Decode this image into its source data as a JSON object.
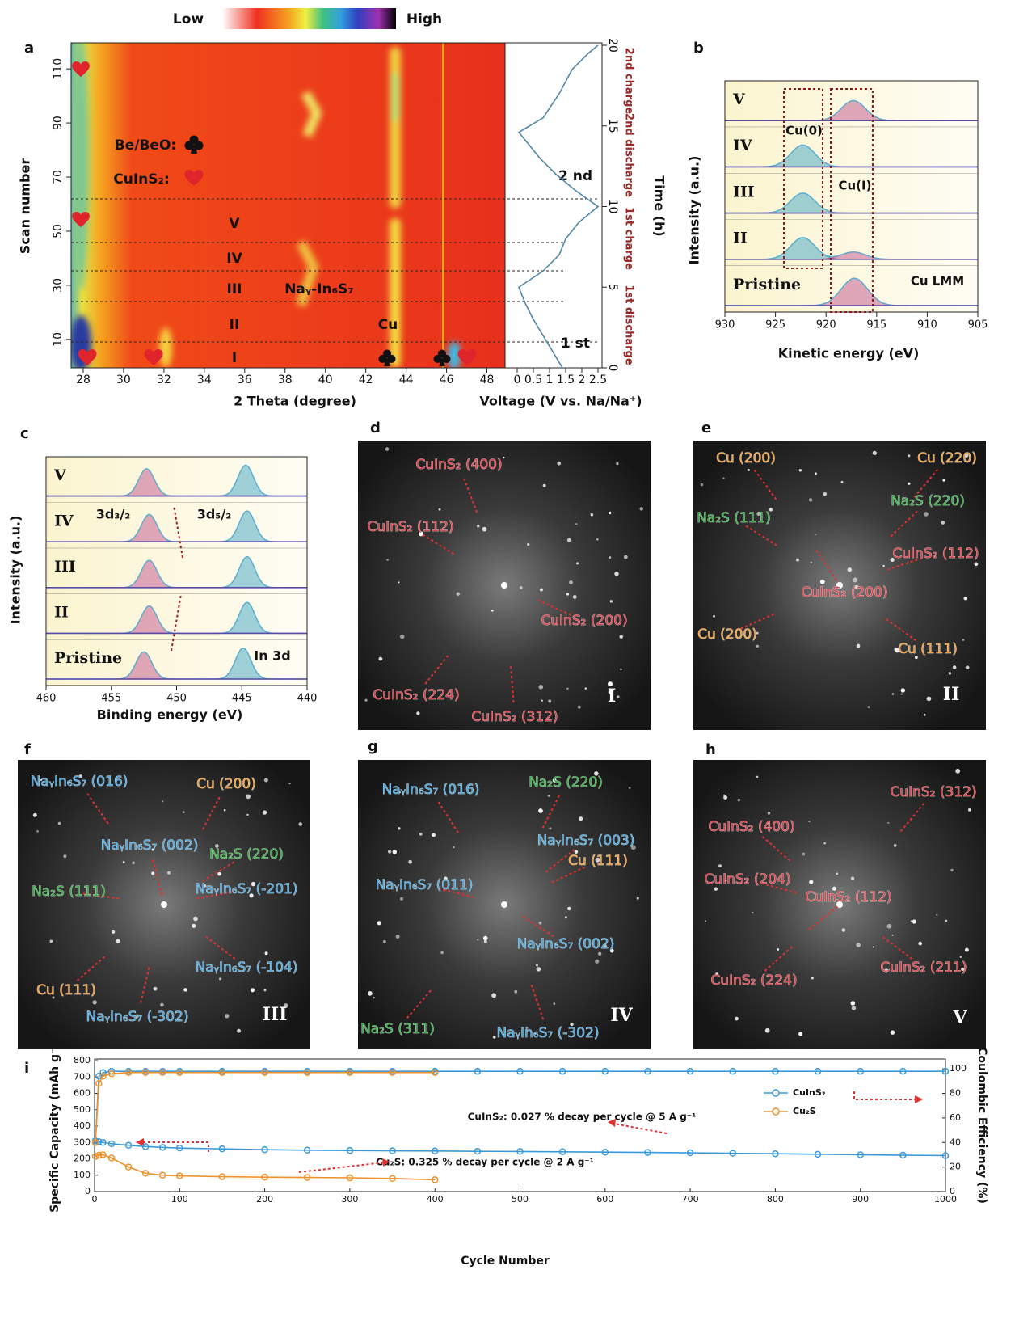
{
  "colorbar": {
    "low": "Low",
    "high": "High"
  },
  "chart_data": [
    {
      "type": "heatmap",
      "label": "a",
      "x_label": "2 Theta (degree)",
      "y_label": "Scan number",
      "xlim": [
        27.4,
        48.9
      ],
      "xticks": [
        28,
        30,
        32,
        34,
        36,
        38,
        40,
        42,
        44,
        46,
        48
      ],
      "ylim": [
        -0.5,
        119.6
      ],
      "yticks": [
        10,
        30,
        50,
        70,
        90,
        110
      ],
      "annotations": {
        "be": "Be/BeO:",
        "cuins": "CuInS₂:",
        "stages": [
          "V",
          "IV",
          "III",
          "II",
          "I"
        ],
        "nayin": "Naᵧ-In₆S₇",
        "cu": "Cu"
      }
    },
    {
      "type": "line",
      "x_label": "Voltage (V vs. Na/Na⁺)",
      "y_label": "Time (h)",
      "xlim": [
        -0.375,
        2.625
      ],
      "xticks": [
        0,
        0.5,
        1,
        1.5,
        2,
        2.5
      ],
      "ylim": [
        0,
        20.15
      ],
      "yticks": [
        0,
        5,
        10,
        15,
        20
      ],
      "series": [
        {
          "color": "#4f86a8",
          "x": [
            1.4,
            1.1,
            0.8,
            0.5,
            0.25,
            0.05,
            0.8,
            1.3,
            1.5,
            1.9,
            2.5,
            1.8,
            1.2,
            0.7,
            0.3,
            0.05,
            0.8,
            1.3,
            1.7,
            2.2,
            2.5
          ],
          "values": [
            0,
            1,
            2,
            3,
            4,
            5,
            6,
            7,
            8,
            9,
            10,
            11,
            12,
            13,
            14,
            14.6,
            15.5,
            17,
            18.5,
            19.5,
            20
          ]
        }
      ],
      "annotations": [
        "2 nd",
        "1 st"
      ],
      "stage_labels": [
        "2nd charge",
        "2nd discharge",
        "1st charge",
        "1st discharge"
      ]
    },
    {
      "type": "spectra",
      "label": "b",
      "x_label": "Kinetic energy (eV)",
      "y_label": "Intensity (a.u.)",
      "xlim": [
        930,
        905
      ],
      "xticks": [
        930,
        925,
        920,
        915,
        910,
        905
      ],
      "annotations": [
        "Cu(0)",
        "Cu(Ⅰ)",
        "Cu LMM"
      ],
      "series": [
        {
          "name": "V",
          "components": [
            {
              "center": 917.3,
              "height": 0.55,
              "width": 1.2,
              "color": "#c0548e"
            }
          ]
        },
        {
          "name": "IV",
          "components": [
            {
              "center": 922.3,
              "height": 0.6,
              "width": 1.2,
              "color": "#3fa6c4"
            }
          ]
        },
        {
          "name": "III",
          "components": [
            {
              "center": 922.3,
              "height": 0.55,
              "width": 1.2,
              "color": "#3fa6c4"
            }
          ]
        },
        {
          "name": "II",
          "components": [
            {
              "center": 922.3,
              "height": 0.6,
              "width": 1.2,
              "color": "#3fa6c4"
            },
            {
              "center": 917.3,
              "height": 0.2,
              "width": 1.2,
              "color": "#c0548e"
            }
          ]
        },
        {
          "name": "Pristine",
          "components": [
            {
              "center": 917.2,
              "height": 0.75,
              "width": 1.3,
              "color": "#c0548e"
            }
          ]
        }
      ]
    },
    {
      "type": "spectra",
      "label": "c",
      "x_label": "Binding energy (eV)",
      "y_label": "Intensity (a.u.)",
      "xlim": [
        460,
        440
      ],
      "xticks": [
        460,
        455,
        450,
        445,
        440
      ],
      "annotations": [
        "3d₃/₂",
        "3d₅/₂",
        "In 3d"
      ],
      "series": [
        {
          "name": "V",
          "components": [
            {
              "center": 452.3,
              "height": 0.75,
              "width": 0.6,
              "color": "#c0548e"
            },
            {
              "center": 444.7,
              "height": 0.85,
              "width": 0.6,
              "color": "#3fa6c4"
            }
          ]
        },
        {
          "name": "IV",
          "components": [
            {
              "center": 452.1,
              "height": 0.75,
              "width": 0.6,
              "color": "#c0548e"
            },
            {
              "center": 444.6,
              "height": 0.85,
              "width": 0.6,
              "color": "#3fa6c4"
            }
          ]
        },
        {
          "name": "III",
          "components": [
            {
              "center": 452.1,
              "height": 0.75,
              "width": 0.6,
              "color": "#c0548e"
            },
            {
              "center": 444.6,
              "height": 0.85,
              "width": 0.6,
              "color": "#3fa6c4"
            }
          ]
        },
        {
          "name": "II",
          "components": [
            {
              "center": 452.1,
              "height": 0.75,
              "width": 0.6,
              "color": "#c0548e"
            },
            {
              "center": 444.6,
              "height": 0.85,
              "width": 0.6,
              "color": "#3fa6c4"
            }
          ]
        },
        {
          "name": "Pristine",
          "components": [
            {
              "center": 452.5,
              "height": 0.75,
              "width": 0.6,
              "color": "#c0548e"
            },
            {
              "center": 444.9,
              "height": 0.85,
              "width": 0.6,
              "color": "#3fa6c4"
            }
          ]
        }
      ]
    },
    {
      "type": "line",
      "label": "i",
      "x_label": "Cycle Number",
      "y_label": "Specific Capacity (mAh g⁻¹)",
      "y2_label": "Coulombic Efficiency (%)",
      "xlim": [
        0,
        1000
      ],
      "xticks": [
        0,
        100,
        200,
        300,
        400,
        500,
        600,
        700,
        800,
        900,
        1000
      ],
      "ylim": [
        0,
        810
      ],
      "yticks": [
        0,
        100,
        200,
        300,
        400,
        500,
        600,
        700,
        800
      ],
      "y2lim": [
        0,
        108
      ],
      "y2ticks": [
        0,
        20,
        40,
        60,
        80,
        100
      ],
      "legend": "upper right",
      "annotations": [
        "CuInS₂: 0.027 % decay per cycle @ 5 A g⁻¹",
        "Cu₂S: 0.325 % decay per cycle @ 2 A g⁻¹"
      ],
      "series": [
        {
          "name": "CuInS₂",
          "color": "#3a9ad9",
          "x": [
            1,
            5,
            10,
            20,
            40,
            60,
            80,
            100,
            150,
            200,
            250,
            300,
            350,
            400,
            450,
            500,
            550,
            600,
            650,
            700,
            750,
            800,
            850,
            900,
            950,
            1000
          ],
          "values": [
            310,
            305,
            300,
            292,
            283,
            275,
            270,
            266,
            261,
            256,
            253,
            251,
            249,
            248,
            246,
            245,
            243,
            241,
            239,
            237,
            234,
            231,
            228,
            225,
            222,
            220
          ]
        },
        {
          "name": "Cu₂S",
          "color": "#f0922a",
          "x": [
            1,
            5,
            10,
            20,
            40,
            60,
            80,
            100,
            150,
            200,
            250,
            300,
            350,
            400
          ],
          "values": [
            215,
            222,
            225,
            205,
            150,
            112,
            100,
            96,
            91,
            88,
            86,
            84,
            80,
            72
          ]
        },
        {
          "color": "#3a9ad9",
          "axis": "y2",
          "x": [
            1,
            5,
            10,
            20,
            40,
            60,
            80,
            100,
            150,
            200,
            250,
            300,
            350,
            400,
            450,
            500,
            550,
            600,
            650,
            700,
            750,
            800,
            850,
            900,
            950,
            1000
          ],
          "values": [
            40,
            94,
            97,
            98,
            98,
            98,
            98,
            98,
            98,
            98,
            98,
            98,
            98,
            98,
            98,
            98,
            98,
            98,
            98,
            98,
            98,
            98,
            98,
            98,
            98,
            98
          ]
        },
        {
          "color": "#f0922a",
          "axis": "y2",
          "x": [
            1,
            5,
            10,
            20,
            40,
            60,
            80,
            100,
            150,
            200,
            250,
            300,
            350,
            400
          ],
          "values": [
            40,
            88,
            94,
            96,
            97,
            97,
            97,
            97,
            97,
            97,
            97,
            97,
            97,
            97
          ]
        }
      ]
    }
  ],
  "fft_panels": [
    {
      "label": "d",
      "stage": "I",
      "labels": [
        {
          "text": "CuInS₂ (400)",
          "color": "#e0404a"
        },
        {
          "text": "CuInS₂ (112)",
          "color": "#e0404a"
        },
        {
          "text": "CuInS₂ (200)",
          "color": "#e0404a"
        },
        {
          "text": "CuInS₂ (224)",
          "color": "#e0404a"
        },
        {
          "text": "CuInS₂ (312)",
          "color": "#e0404a"
        }
      ]
    },
    {
      "label": "e",
      "stage": "II",
      "labels": [
        {
          "text": "Cu (200)",
          "color": "#f0a040"
        },
        {
          "text": "Cu (220)",
          "color": "#f0a040"
        },
        {
          "text": "Na₂S (220)",
          "color": "#3bb04a"
        },
        {
          "text": "Na₂S (111)",
          "color": "#3bb04a"
        },
        {
          "text": "CuInS₂ (112)",
          "color": "#e0404a"
        },
        {
          "text": "CuInS₂ (200)",
          "color": "#e0404a"
        },
        {
          "text": "Cu (200)",
          "color": "#f0a040"
        },
        {
          "text": "Cu (111)",
          "color": "#f0a040"
        }
      ]
    },
    {
      "label": "f",
      "stage": "III",
      "labels": [
        {
          "text": "NaᵧIn₆S₇ (016)",
          "color": "#4aa8e0"
        },
        {
          "text": "Cu (200)",
          "color": "#f0a040"
        },
        {
          "text": "NaᵧIn₆S₇ (002)",
          "color": "#4aa8e0"
        },
        {
          "text": "Na₂S (220)",
          "color": "#3bb04a"
        },
        {
          "text": "Na₂S (111)",
          "color": "#3bb04a"
        },
        {
          "text": "NaᵧIn₆S₇ (-201)",
          "color": "#4aa8e0"
        },
        {
          "text": "NaᵧIn₆S₇ (-104)",
          "color": "#4aa8e0"
        },
        {
          "text": "Cu (111)",
          "color": "#f0a040"
        },
        {
          "text": "NaᵧIn₆S₇ (-302)",
          "color": "#4aa8e0"
        }
      ]
    },
    {
      "label": "g",
      "stage": "IV",
      "labels": [
        {
          "text": "NaᵧIn₆S₇ (016)",
          "color": "#4aa8e0"
        },
        {
          "text": "Na₂S (220)",
          "color": "#3bb04a"
        },
        {
          "text": "NaᵧIn₆S₇ (003)",
          "color": "#4aa8e0"
        },
        {
          "text": "Cu (111)",
          "color": "#f0a040"
        },
        {
          "text": "NaᵧIn₆S₇ (011)",
          "color": "#4aa8e0"
        },
        {
          "text": "NaᵧIn₆S₇ (002)",
          "color": "#4aa8e0"
        },
        {
          "text": "Na₂S (311)",
          "color": "#3bb04a"
        },
        {
          "text": "NaᵧIn₆S₇ (-302)",
          "color": "#4aa8e0"
        }
      ]
    },
    {
      "label": "h",
      "stage": "V",
      "labels": [
        {
          "text": "CuInS₂ (312)",
          "color": "#e0404a"
        },
        {
          "text": "CuInS₂ (400)",
          "color": "#e0404a"
        },
        {
          "text": "CuInS₂ (204)",
          "color": "#e0404a"
        },
        {
          "text": "CuInS₂ (112)",
          "color": "#e0404a"
        },
        {
          "text": "CuInS₂ (211)",
          "color": "#e0404a"
        },
        {
          "text": "CuInS₂ (224)",
          "color": "#e0404a"
        }
      ]
    }
  ]
}
